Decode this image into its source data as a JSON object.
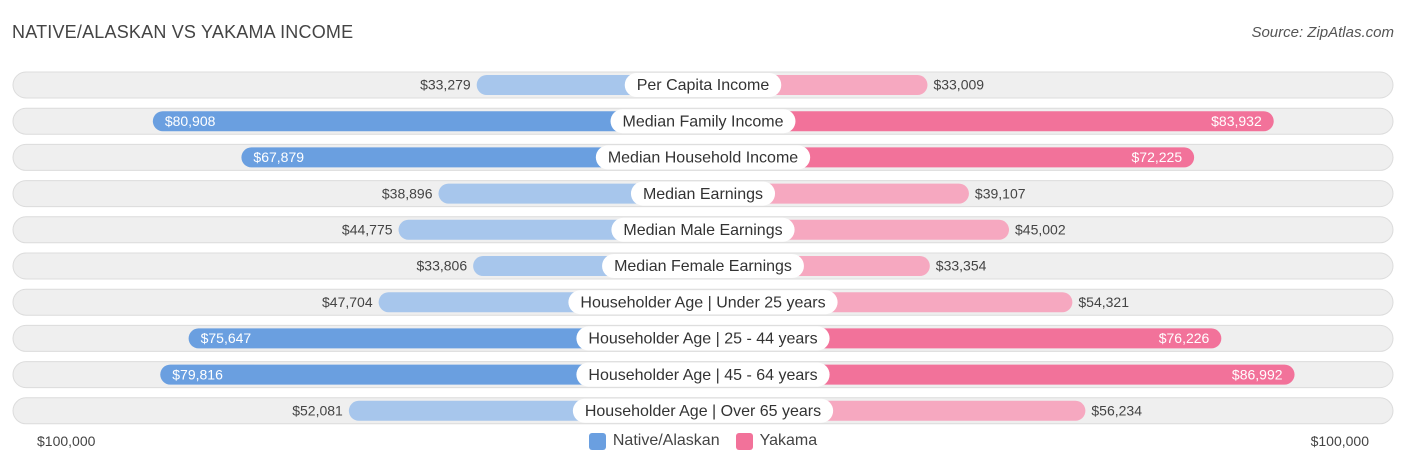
{
  "header": {
    "title": "NATIVE/ALASKAN VS YAKAMA INCOME",
    "source": "Source: ZipAtlas.com"
  },
  "axis": {
    "left_label": "$100,000",
    "right_label": "$100,000"
  },
  "legend": {
    "series1": "Native/Alaskan",
    "series2": "Yakama"
  },
  "colors": {
    "series1_strong": "#6a9fe0",
    "series1_light": "#a7c6ec",
    "series2_strong": "#f2729a",
    "series2_light": "#f6a8c0",
    "track": "#efefef",
    "track_border": "#dcdcdc"
  },
  "chart_data": {
    "type": "bar",
    "orientation": "horizontal-diverging",
    "title": "NATIVE/ALASKAN VS YAKAMA INCOME",
    "xlim": [
      0,
      100000
    ],
    "categories": [
      "Per Capita Income",
      "Median Family Income",
      "Median Household Income",
      "Median Earnings",
      "Median Male Earnings",
      "Median Female Earnings",
      "Householder Age | Under 25 years",
      "Householder Age | 25 - 44 years",
      "Householder Age | 45 - 64 years",
      "Householder Age | Over 65 years"
    ],
    "series": [
      {
        "name": "Native/Alaskan",
        "values": [
          33279,
          80908,
          67879,
          38896,
          44775,
          33806,
          47704,
          75647,
          79816,
          52081
        ],
        "labels": [
          "$33,279",
          "$80,908",
          "$67,879",
          "$38,896",
          "$44,775",
          "$33,806",
          "$47,704",
          "$75,647",
          "$79,816",
          "$52,081"
        ]
      },
      {
        "name": "Yakama",
        "values": [
          33009,
          83932,
          72225,
          39107,
          45002,
          33354,
          54321,
          76226,
          86992,
          56234
        ],
        "labels": [
          "$33,009",
          "$83,932",
          "$72,225",
          "$39,107",
          "$45,002",
          "$33,354",
          "$54,321",
          "$76,226",
          "$86,992",
          "$56,234"
        ]
      }
    ]
  }
}
